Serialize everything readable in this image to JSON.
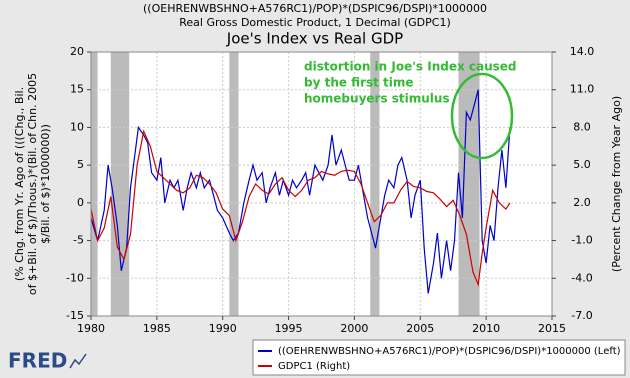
{
  "chart_data": {
    "type": "line",
    "titles": [
      "((OEHRENWBSHNO+A576RC1)/POP)*(DSPIC96/DSPI)*1000000",
      "Real Gross Domestic Product, 1 Decimal (GDPC1)"
    ],
    "title": "Joe's Index vs Real GDP",
    "y_label": [
      "(% Chg. from Yr. Ago of (((Chg., Bil.",
      "of $+Bil. of $)/Thous.)*(Bil. of Chn. 2005",
      "$/Bil. of $)*1000000))"
    ],
    "y2_label": "(Percent Change from Year Ago)",
    "annotation": [
      "distortion in Joe's Index caused",
      "by the first time",
      "homebuyers stimulus"
    ],
    "logo": "FRED",
    "xlim": [
      1980,
      2015
    ],
    "xticks": [
      1980,
      1985,
      1990,
      1995,
      2000,
      2005,
      2010,
      2015
    ],
    "ylim": [
      -15,
      20
    ],
    "yticks": [
      -15,
      -10,
      -5,
      0,
      5,
      10,
      15,
      20
    ],
    "y2lim": [
      -7,
      14
    ],
    "y2ticks": [
      {
        "value": -7,
        "label": "-7.0"
      },
      {
        "value": -4,
        "label": "-4.0"
      },
      {
        "value": -1,
        "label": "-1.0"
      },
      {
        "value": 2,
        "label": "2.0"
      },
      {
        "value": 5,
        "label": "5.0"
      },
      {
        "value": 8,
        "label": "8.0"
      },
      {
        "value": 11,
        "label": "11.0"
      },
      {
        "value": 14,
        "label": "14.0"
      }
    ],
    "grid": true,
    "recession_color": "#bbbbbb",
    "recessions": [
      [
        1980.0,
        1980.5
      ],
      [
        1981.5,
        1982.9
      ],
      [
        1990.5,
        1991.2
      ],
      [
        2001.2,
        2001.9
      ],
      [
        2007.9,
        2009.5
      ]
    ],
    "series": [
      {
        "name": "((OEHRENWBSHNO+A576RC1)/POP)*(DSPIC96/DSPI)*1000000 (Left)",
        "color": "#0000cc",
        "axis": "y",
        "x": [
          1980.0,
          1980.5,
          1981.0,
          1981.3,
          1981.6,
          1982.0,
          1982.3,
          1982.7,
          1983.0,
          1983.3,
          1983.6,
          1984.0,
          1984.3,
          1984.6,
          1985.0,
          1985.3,
          1985.6,
          1986.0,
          1986.3,
          1986.6,
          1987.0,
          1987.3,
          1987.6,
          1988.0,
          1988.3,
          1988.6,
          1989.0,
          1989.3,
          1989.6,
          1990.0,
          1990.5,
          1990.8,
          1991.2,
          1991.6,
          1992.0,
          1992.3,
          1992.6,
          1993.0,
          1993.3,
          1993.6,
          1994.0,
          1994.3,
          1994.6,
          1995.0,
          1995.3,
          1995.6,
          1996.0,
          1996.3,
          1996.6,
          1997.0,
          1997.3,
          1997.6,
          1998.0,
          1998.3,
          1998.6,
          1999.0,
          1999.3,
          1999.6,
          2000.0,
          2000.3,
          2000.6,
          2001.0,
          2001.3,
          2001.6,
          2002.0,
          2002.3,
          2002.6,
          2003.0,
          2003.3,
          2003.6,
          2004.0,
          2004.3,
          2004.6,
          2005.0,
          2005.3,
          2005.6,
          2006.0,
          2006.3,
          2006.6,
          2007.0,
          2007.3,
          2007.6,
          2007.9,
          2008.2,
          2008.5,
          2008.8,
          2009.1,
          2009.4,
          2009.7,
          2010.0,
          2010.3,
          2010.6,
          2010.9,
          2011.2,
          2011.5,
          2011.8
        ],
        "values": [
          -2,
          -5,
          -1,
          5,
          2,
          -3,
          -9,
          -6,
          2,
          6,
          10,
          9,
          8,
          4,
          3,
          6,
          0,
          3,
          2,
          3,
          -1,
          2,
          4,
          2,
          4,
          2,
          3,
          1,
          -1,
          -2,
          -4,
          -5,
          -4,
          0,
          3,
          5,
          3,
          4,
          0,
          2,
          4,
          1,
          3,
          1,
          3,
          2,
          3,
          4,
          1,
          5,
          4,
          3,
          5,
          9,
          5,
          7,
          5,
          3,
          3,
          5,
          2,
          -2,
          -4,
          -6,
          -2,
          1,
          3,
          2,
          5,
          6,
          3,
          -2,
          1,
          3,
          -6,
          -12,
          -8,
          -4,
          -10,
          -5,
          -9,
          -5,
          4,
          -2,
          12,
          11,
          13,
          15,
          -5,
          -8,
          -3,
          -5,
          2,
          7,
          2,
          10
        ]
      },
      {
        "name": "GDPC1 (Right)",
        "color": "#cc0000",
        "axis": "y2",
        "x": [
          1980.0,
          1980.5,
          1981.0,
          1981.5,
          1982.0,
          1982.5,
          1983.0,
          1983.5,
          1984.0,
          1984.5,
          1985.0,
          1985.5,
          1986.0,
          1986.5,
          1987.0,
          1987.5,
          1988.0,
          1988.5,
          1989.0,
          1989.5,
          1990.0,
          1990.5,
          1991.0,
          1991.5,
          1992.0,
          1992.5,
          1993.0,
          1993.5,
          1994.0,
          1994.5,
          1995.0,
          1995.5,
          1996.0,
          1996.5,
          1997.0,
          1997.5,
          1998.0,
          1998.5,
          1999.0,
          1999.5,
          2000.0,
          2000.5,
          2001.0,
          2001.5,
          2002.0,
          2002.5,
          2003.0,
          2003.5,
          2004.0,
          2004.5,
          2005.0,
          2005.5,
          2006.0,
          2006.5,
          2007.0,
          2007.5,
          2008.0,
          2008.5,
          2009.0,
          2009.4,
          2009.7,
          2010.0,
          2010.5,
          2011.0,
          2011.5,
          2011.8
        ],
        "values": [
          1.5,
          -1,
          0,
          2.5,
          -1.5,
          -2.5,
          -0.5,
          5,
          7.7,
          6.5,
          4.5,
          4,
          3.5,
          3,
          2.8,
          3.2,
          4.2,
          4,
          3.5,
          2.8,
          1.5,
          1,
          -1,
          0.5,
          2.5,
          3.5,
          3,
          2.7,
          3.5,
          4,
          3,
          2.5,
          3,
          3.8,
          4,
          4.5,
          4.3,
          4.2,
          4.5,
          4.6,
          4.5,
          3.5,
          2,
          0.5,
          1,
          2,
          2,
          3,
          3.7,
          3.3,
          3.2,
          2.9,
          2.8,
          2.3,
          1.7,
          2.2,
          1,
          -0.5,
          -3.5,
          -4.5,
          -2,
          0,
          3,
          2,
          1.5,
          2
        ]
      }
    ]
  }
}
